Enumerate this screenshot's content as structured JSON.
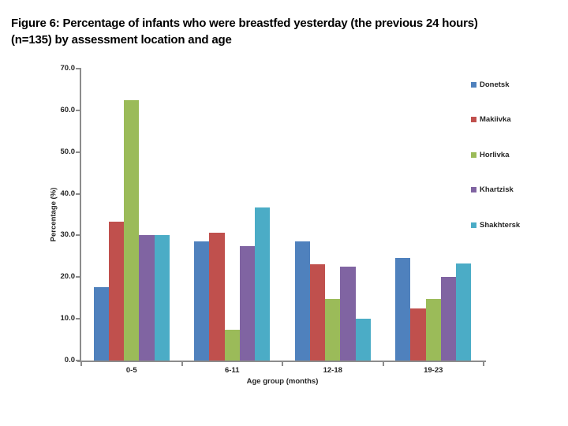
{
  "slide": {
    "title_line1": "Figure 6: Percentage of infants who were breastfed yesterday (the previous 24 hours)",
    "title_line2": "(n=135) by assessment location and age"
  },
  "chart_data": {
    "type": "bar",
    "title": "",
    "categories": [
      "0-5",
      "6-11",
      "12-18",
      "19-23"
    ],
    "series": [
      {
        "name": "Donetsk",
        "color": "#4F81BD",
        "values": [
          17.6,
          28.6,
          28.6,
          24.6
        ]
      },
      {
        "name": "Makiivka",
        "color": "#C0504D",
        "values": [
          33.3,
          30.7,
          23.0,
          12.5
        ]
      },
      {
        "name": "Horlivka",
        "color": "#9BBB59",
        "values": [
          62.5,
          7.4,
          14.8,
          14.8
        ]
      },
      {
        "name": "Khartzisk",
        "color": "#8064A2",
        "values": [
          30.0,
          27.5,
          22.5,
          20.0
        ]
      },
      {
        "name": "Shakhtersk",
        "color": "#4BACC6",
        "values": [
          30.0,
          36.7,
          10.0,
          23.3
        ]
      }
    ],
    "xlabel": "Age group (months)",
    "ylabel": "Percentage (%)",
    "ylim": [
      0,
      70
    ],
    "ytick_step": 10,
    "ytick_labels": [
      "0.0",
      "10.0",
      "20.0",
      "30.0",
      "40.0",
      "50.0",
      "60.0",
      "70.0"
    ],
    "grid": false,
    "legend_position": "right",
    "axis_color": "#8C8C8C",
    "label_color": "#262626"
  }
}
